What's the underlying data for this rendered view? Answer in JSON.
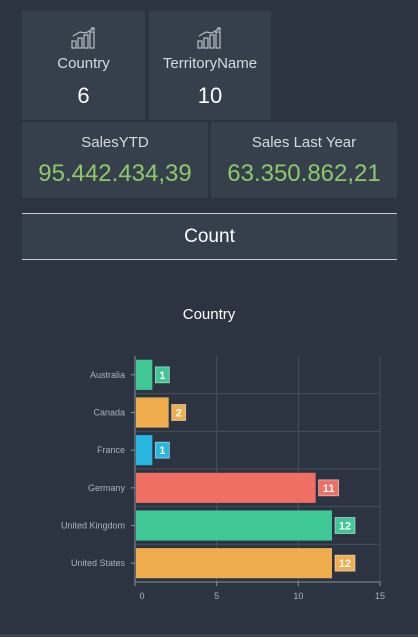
{
  "kpis": {
    "country": {
      "label": "Country",
      "value": "6",
      "icon": "bar-chart-growth-icon"
    },
    "territory": {
      "label": "TerritoryName",
      "value": "10",
      "icon": "bar-chart-growth-icon"
    },
    "sales_ytd": {
      "label": "SalesYTD",
      "value": "95.442.434,39"
    },
    "sales_last_year": {
      "label": "Sales Last Year",
      "value": "63.350.862,21"
    }
  },
  "count_button": {
    "label": "Count"
  },
  "chart_data": {
    "type": "bar",
    "orientation": "horizontal",
    "title": "Country",
    "categories": [
      "Australia",
      "Canada",
      "France",
      "Germany",
      "United Kingdom",
      "United States"
    ],
    "values": [
      1,
      2,
      1,
      11,
      12,
      12
    ],
    "colors": [
      "#3fc796",
      "#f0ad4e",
      "#29b6e0",
      "#ef6f64",
      "#3fc796",
      "#f0ad4e"
    ],
    "xlim": [
      0,
      15
    ],
    "xticks": [
      0,
      5,
      10,
      15
    ],
    "grid": true
  }
}
